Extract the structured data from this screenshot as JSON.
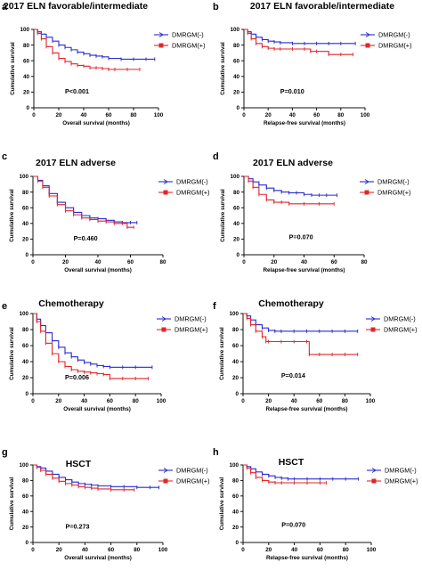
{
  "figure": {
    "legend_labels": [
      "DMRGM(-)",
      "DMRGM(+)"
    ]
  },
  "colors": {
    "dmrgm_neg": "#2b2bcf",
    "dmrgm_pos": "#e0262b",
    "axis": "#111111"
  },
  "chart_data": [
    {
      "type": "line",
      "letter": "a",
      "title": "2017 ELN favorable/intermediate",
      "xlabel": "Overall survival (months)",
      "ylabel": "Cumulative survival",
      "xlim": [
        0,
        100
      ],
      "xticks": [
        0,
        20,
        40,
        60,
        80,
        100
      ],
      "ylim": [
        0,
        100
      ],
      "yticks": [
        0,
        20,
        40,
        60,
        80,
        100
      ],
      "pvalue": "P<0.001",
      "legend_position": "top-right",
      "grid": false,
      "series": [
        {
          "name": "DMRGM(-)",
          "x": [
            0,
            3,
            6,
            10,
            15,
            20,
            25,
            30,
            35,
            40,
            45,
            50,
            55,
            60,
            70,
            80,
            90,
            97
          ],
          "y": [
            100,
            97,
            94,
            90,
            85,
            80,
            77,
            74,
            71,
            69,
            67,
            66,
            65,
            63,
            62,
            62,
            62,
            62
          ]
        },
        {
          "name": "DMRGM(+)",
          "x": [
            0,
            3,
            6,
            10,
            15,
            20,
            25,
            30,
            35,
            40,
            45,
            50,
            55,
            60,
            65,
            75,
            85
          ],
          "y": [
            100,
            95,
            88,
            78,
            70,
            63,
            59,
            56,
            54,
            53,
            51,
            51,
            50,
            49,
            49,
            49,
            49
          ]
        }
      ]
    },
    {
      "type": "line",
      "letter": "b",
      "title": "2017 ELN favorable/intermediate",
      "xlabel": "Relapse-free survival (months)",
      "ylabel": "Cumulative survival",
      "xlim": [
        0,
        100
      ],
      "xticks": [
        0,
        20,
        40,
        60,
        80,
        100
      ],
      "ylim": [
        0,
        100
      ],
      "yticks": [
        0,
        20,
        40,
        60,
        80,
        100
      ],
      "pvalue": "P=0.010",
      "legend_position": "top-right",
      "grid": false,
      "series": [
        {
          "name": "DMRGM(-)",
          "x": [
            0,
            3,
            6,
            10,
            15,
            20,
            25,
            30,
            40,
            50,
            60,
            70,
            80,
            92
          ],
          "y": [
            100,
            97,
            94,
            90,
            87,
            85,
            84,
            83,
            82,
            82,
            82,
            82,
            82,
            82
          ]
        },
        {
          "name": "DMRGM(+)",
          "x": [
            0,
            3,
            6,
            10,
            15,
            20,
            25,
            30,
            40,
            50,
            55,
            60,
            70,
            80,
            90
          ],
          "y": [
            100,
            95,
            88,
            82,
            78,
            76,
            75,
            75,
            75,
            75,
            72,
            72,
            68,
            68,
            68
          ]
        }
      ]
    },
    {
      "type": "line",
      "letter": "c",
      "title": "2017 ELN adverse",
      "xlabel": "Overall survival (months)",
      "ylabel": "Cumulative survival",
      "xlim": [
        0,
        80
      ],
      "xticks": [
        0,
        20,
        40,
        60,
        80
      ],
      "ylim": [
        0,
        100
      ],
      "yticks": [
        0,
        20,
        40,
        60,
        80,
        100
      ],
      "pvalue": "P=0.460",
      "legend_position": "top-right",
      "grid": false,
      "series": [
        {
          "name": "DMRGM(-)",
          "x": [
            0,
            3,
            6,
            10,
            15,
            20,
            25,
            30,
            35,
            40,
            45,
            50,
            55,
            60,
            64
          ],
          "y": [
            100,
            95,
            88,
            78,
            67,
            60,
            54,
            50,
            47,
            46,
            44,
            42,
            41,
            41,
            41
          ]
        },
        {
          "name": "DMRGM(+)",
          "x": [
            0,
            3,
            6,
            10,
            15,
            20,
            25,
            30,
            35,
            40,
            45,
            50,
            55,
            58,
            62
          ],
          "y": [
            100,
            94,
            86,
            75,
            64,
            56,
            51,
            47,
            45,
            43,
            42,
            40,
            40,
            35,
            35
          ]
        }
      ]
    },
    {
      "type": "line",
      "letter": "d",
      "title": "2017 ELN adverse",
      "xlabel": "Relapse-free survival (months)",
      "ylabel": "Cumulative survival",
      "xlim": [
        0,
        80
      ],
      "xticks": [
        0,
        20,
        40,
        60,
        80
      ],
      "ylim": [
        0,
        100
      ],
      "yticks": [
        0,
        20,
        40,
        60,
        80,
        100
      ],
      "pvalue": "P=0.070",
      "legend_position": "top-right",
      "grid": false,
      "series": [
        {
          "name": "DMRGM(-)",
          "x": [
            0,
            3,
            6,
            10,
            15,
            20,
            25,
            30,
            35,
            40,
            45,
            50,
            55,
            62
          ],
          "y": [
            100,
            97,
            93,
            89,
            85,
            82,
            80,
            79,
            79,
            77,
            76,
            76,
            76,
            76
          ]
        },
        {
          "name": "DMRGM(+)",
          "x": [
            0,
            3,
            6,
            10,
            15,
            20,
            25,
            30,
            40,
            50,
            60
          ],
          "y": [
            100,
            94,
            86,
            77,
            70,
            67,
            67,
            65,
            65,
            65,
            65
          ]
        }
      ]
    },
    {
      "type": "line",
      "letter": "e",
      "title": "Chemotherapy",
      "xlabel": "Overall survival (months)",
      "ylabel": "Cumulative survival",
      "xlim": [
        0,
        100
      ],
      "xticks": [
        0,
        20,
        40,
        60,
        80,
        100
      ],
      "ylim": [
        0,
        100
      ],
      "yticks": [
        0,
        20,
        40,
        60,
        80,
        100
      ],
      "pvalue": "P=0.006",
      "legend_position": "top-right",
      "grid": false,
      "series": [
        {
          "name": "DMRGM(-)",
          "x": [
            0,
            3,
            6,
            10,
            15,
            20,
            25,
            30,
            35,
            40,
            45,
            50,
            55,
            60,
            70,
            80,
            93
          ],
          "y": [
            100,
            93,
            85,
            76,
            66,
            58,
            51,
            46,
            42,
            39,
            37,
            35,
            34,
            33,
            33,
            33,
            33
          ]
        },
        {
          "name": "DMRGM(+)",
          "x": [
            0,
            3,
            6,
            10,
            15,
            20,
            25,
            30,
            35,
            40,
            45,
            50,
            55,
            60,
            70,
            80,
            90
          ],
          "y": [
            100,
            90,
            78,
            63,
            50,
            40,
            34,
            30,
            28,
            27,
            26,
            25,
            24,
            19,
            19,
            19,
            19
          ]
        }
      ]
    },
    {
      "type": "line",
      "letter": "f",
      "title": "Chemotherapy",
      "xlabel": "Relapse-free survival (months)",
      "ylabel": "Cumulative survival",
      "xlim": [
        0,
        100
      ],
      "xticks": [
        0,
        20,
        40,
        60,
        80,
        100
      ],
      "ylim": [
        0,
        100
      ],
      "yticks": [
        0,
        20,
        40,
        60,
        80,
        100
      ],
      "pvalue": "P=0.014",
      "legend_position": "top-right",
      "grid": false,
      "series": [
        {
          "name": "DMRGM(-)",
          "x": [
            0,
            3,
            6,
            10,
            15,
            20,
            25,
            30,
            40,
            50,
            60,
            70,
            80,
            90
          ],
          "y": [
            100,
            97,
            92,
            86,
            82,
            79,
            78,
            78,
            78,
            78,
            78,
            78,
            78,
            78
          ]
        },
        {
          "name": "DMRGM(+)",
          "x": [
            0,
            3,
            6,
            10,
            15,
            18,
            20,
            30,
            40,
            50,
            52,
            60,
            70,
            80,
            90
          ],
          "y": [
            100,
            94,
            86,
            78,
            71,
            65,
            65,
            65,
            65,
            65,
            49,
            49,
            49,
            49,
            49
          ]
        }
      ]
    },
    {
      "type": "line",
      "letter": "g",
      "title": "HSCT",
      "xlabel": "Overall survival (months)",
      "ylabel": "Cumulative survival",
      "xlim": [
        0,
        100
      ],
      "xticks": [
        0,
        20,
        40,
        60,
        80,
        100
      ],
      "ylim": [
        0,
        100
      ],
      "yticks": [
        0,
        20,
        40,
        60,
        80,
        100
      ],
      "pvalue": "P=0.273",
      "legend_position": "top-right",
      "grid": false,
      "series": [
        {
          "name": "DMRGM(-)",
          "x": [
            0,
            3,
            6,
            10,
            15,
            20,
            25,
            30,
            35,
            40,
            45,
            50,
            60,
            70,
            80,
            90,
            97
          ],
          "y": [
            100,
            98,
            96,
            92,
            88,
            84,
            81,
            78,
            76,
            75,
            74,
            73,
            72,
            72,
            71,
            71,
            71
          ]
        },
        {
          "name": "DMRGM(+)",
          "x": [
            0,
            3,
            6,
            10,
            15,
            20,
            25,
            30,
            35,
            40,
            45,
            50,
            60,
            70,
            78
          ],
          "y": [
            100,
            97,
            93,
            88,
            83,
            79,
            76,
            74,
            72,
            71,
            70,
            69,
            68,
            68,
            68
          ]
        }
      ]
    },
    {
      "type": "line",
      "letter": "h",
      "title": "HSCT",
      "xlabel": "Relapse-free survival (months)",
      "ylabel": "Cumulative survival",
      "xlim": [
        0,
        100
      ],
      "xticks": [
        0,
        20,
        40,
        60,
        80,
        100
      ],
      "ylim": [
        0,
        100
      ],
      "yticks": [
        0,
        20,
        40,
        60,
        80,
        100
      ],
      "pvalue": "P=0.070",
      "legend_position": "top-right",
      "grid": false,
      "series": [
        {
          "name": "DMRGM(-)",
          "x": [
            0,
            3,
            6,
            10,
            15,
            20,
            25,
            30,
            35,
            40,
            50,
            60,
            70,
            80,
            90
          ],
          "y": [
            100,
            98,
            95,
            91,
            88,
            86,
            84,
            83,
            82,
            82,
            82,
            82,
            82,
            82,
            82
          ]
        },
        {
          "name": "DMRGM(+)",
          "x": [
            0,
            3,
            6,
            10,
            15,
            20,
            25,
            30,
            40,
            50,
            60,
            65
          ],
          "y": [
            100,
            96,
            90,
            84,
            80,
            78,
            77,
            77,
            77,
            77,
            77,
            77
          ]
        }
      ]
    }
  ]
}
